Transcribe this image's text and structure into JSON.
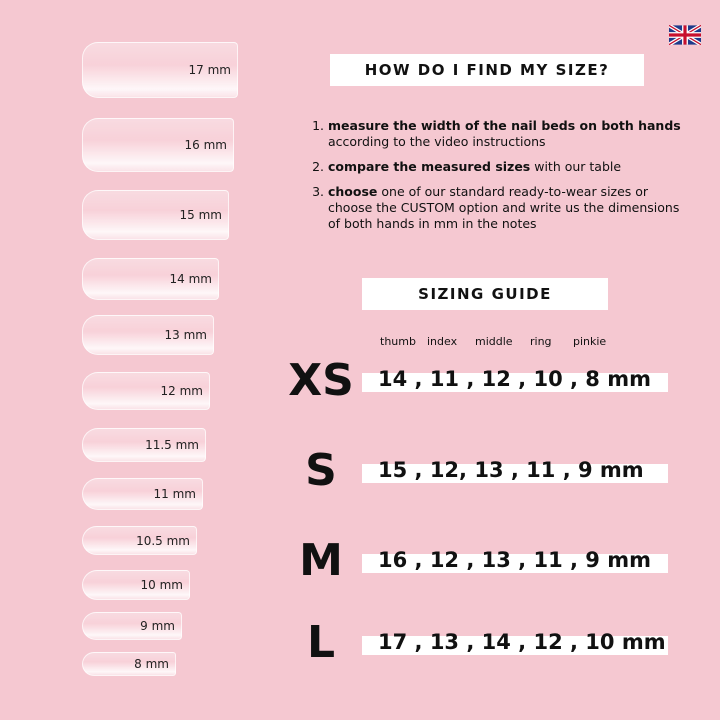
{
  "flag": "uk-flag-icon",
  "nails": [
    "17 mm",
    "16 mm",
    "15 mm",
    "14 mm",
    "13 mm",
    "12 mm",
    "11.5 mm",
    "11 mm",
    "10.5 mm",
    "10 mm",
    "9 mm",
    "8 mm"
  ],
  "header": "HOW DO I FIND MY SIZE?",
  "steps": [
    {
      "bold": "measure the width of the nail beds on both hands",
      "rest": " according to the video instructions"
    },
    {
      "bold": "compare the measured sizes",
      "rest": " with our table"
    },
    {
      "bold": "choose",
      "rest": " one of our standard ready-to-wear sizes or choose the CUSTOM option and write us the dimensions of both hands in mm in the notes"
    }
  ],
  "guide_title": "SIZING GUIDE",
  "columns": [
    "thumb",
    "index",
    "middle",
    "ring",
    "pinkie"
  ],
  "sizes": [
    {
      "label": "XS",
      "values": "14 , 11 , 12 , 10 , 8 mm"
    },
    {
      "label": "S",
      "values": "15 , 12, 13 , 11 , 9 mm"
    },
    {
      "label": "M",
      "values": "16 , 12 , 13 , 11 , 9 mm"
    },
    {
      "label": "L",
      "values": "17 , 13 , 14 , 12 , 10 mm"
    }
  ],
  "colors": {
    "background": "#f5c8d1",
    "box": "#ffffff",
    "text": "#111111"
  }
}
